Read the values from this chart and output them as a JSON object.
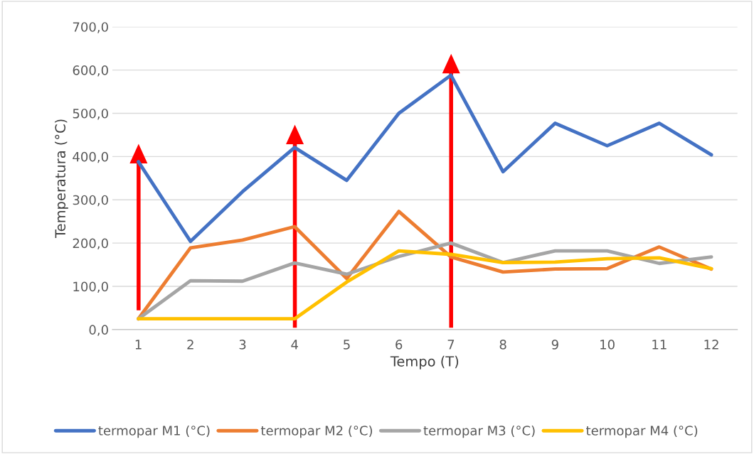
{
  "chart_data": {
    "type": "line",
    "xlabel": "Tempo (T)",
    "ylabel": "Temperatura (°C)",
    "categories": [
      "1",
      "2",
      "3",
      "4",
      "5",
      "6",
      "7",
      "8",
      "9",
      "10",
      "11",
      "12"
    ],
    "series": [
      {
        "name": "termopar M1 (°C)",
        "color": "#4472c4",
        "values": [
          388,
          204,
          319,
          421,
          345,
          500,
          588,
          365,
          477,
          425,
          477,
          404
        ]
      },
      {
        "name": "termopar M2 (°C)",
        "color": "#ed7d31",
        "values": [
          25,
          189,
          207,
          238,
          118,
          273,
          168,
          133,
          140,
          141,
          191,
          140
        ]
      },
      {
        "name": "termopar M3 (°C)",
        "color": "#a5a5a5",
        "values": [
          25,
          113,
          112,
          154,
          128,
          169,
          200,
          155,
          182,
          182,
          153,
          168
        ]
      },
      {
        "name": "termopar M4 (°C)",
        "color": "#ffc000",
        "values": [
          25,
          25,
          25,
          25,
          110,
          182,
          174,
          155,
          156,
          164,
          166,
          141
        ]
      }
    ],
    "ylim": [
      0,
      700
    ],
    "yticks": [
      {
        "value": 0,
        "label": "0,0"
      },
      {
        "value": 100,
        "label": "100,0"
      },
      {
        "value": 200,
        "label": "200,0"
      },
      {
        "value": 300,
        "label": "300,0"
      },
      {
        "value": 400,
        "label": "400,0"
      },
      {
        "value": 500,
        "label": "500,0"
      },
      {
        "value": 600,
        "label": "600,0"
      },
      {
        "value": 700,
        "label": "700,0"
      }
    ],
    "grid": "y",
    "legend": "bottom",
    "marker": "none",
    "line_style": "solid"
  }
}
